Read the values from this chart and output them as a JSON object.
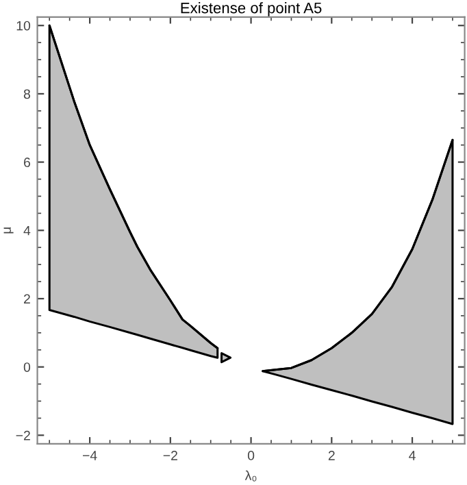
{
  "chart_data": {
    "type": "line",
    "title": "Existense of point A5",
    "xlabel": "λ₀",
    "ylabel": "μ",
    "xlim": [
      -5.3,
      5.3
    ],
    "ylim": [
      -2.25,
      10.25
    ],
    "xticks": [
      -4,
      -2,
      0,
      2,
      4
    ],
    "yticks": [
      -2,
      0,
      2,
      4,
      6,
      8,
      10
    ],
    "series": [
      {
        "color": "#000000",
        "x": [
          -5,
          -4.39,
          -4,
          -3.5,
          -3,
          -2.82,
          -2.5,
          -2,
          -1.7,
          -1.5,
          -1,
          -0.83
        ],
        "values": [
          10,
          7.79,
          6.5,
          5.2,
          3.95,
          3.52,
          2.85,
          1.95,
          1.39,
          1.2,
          0.7,
          0.55
        ],
        "upper": [
          10,
          7.79,
          6.5,
          5.2,
          3.95,
          3.52,
          2.85,
          1.95,
          1.39,
          1.2,
          0.7,
          0.55
        ],
        "lower": [
          1.67,
          1.47,
          1.33,
          1.17,
          1.0,
          0.94,
          0.83,
          0.66,
          0.56,
          0.49,
          0.32,
          0.27
        ]
      },
      {
        "type": "scatter",
        "marker": "triangle",
        "color": "#000000",
        "x": [
          -0.62
        ],
        "values": [
          0.27
        ]
      },
      {
        "color": "#000000",
        "x": [
          0.29,
          0.6,
          1,
          1.5,
          2,
          2.5,
          3,
          3.5,
          4,
          4.5,
          5
        ],
        "values": [
          -0.12,
          -0.08,
          -0.03,
          0.2,
          0.55,
          1.0,
          1.55,
          2.35,
          3.45,
          4.9,
          6.65
        ],
        "upper": [
          -0.12,
          -0.08,
          -0.03,
          0.2,
          0.55,
          1.0,
          1.55,
          2.35,
          3.45,
          4.9,
          6.65
        ],
        "lower": [
          -0.12,
          -0.22,
          -0.35,
          -0.52,
          -0.68,
          -0.84,
          -1.01,
          -1.17,
          -1.34,
          -1.5,
          -1.67
        ]
      }
    ]
  }
}
